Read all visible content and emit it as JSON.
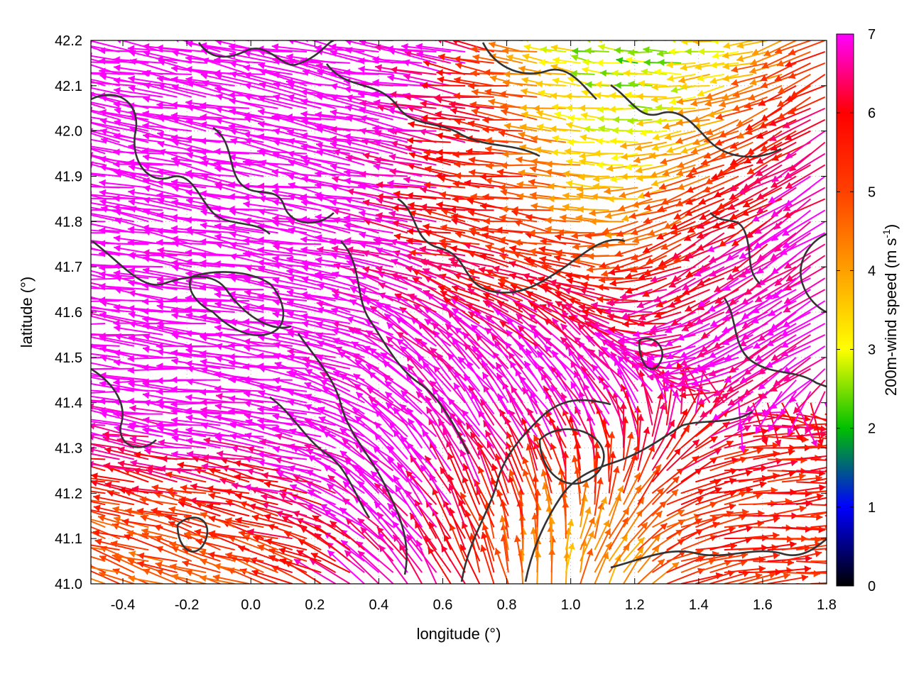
{
  "chart_data": {
    "type": "vector-field",
    "xlabel": "longitude (°)",
    "ylabel": "latitude (°)",
    "xlim": [
      -0.5,
      1.8
    ],
    "ylim": [
      41.0,
      42.2
    ],
    "xticks": [
      "-0.4",
      "-0.2",
      "0.0",
      "0.2",
      "0.4",
      "0.6",
      "0.8",
      "1.0",
      "1.2",
      "1.4",
      "1.6",
      "1.8"
    ],
    "yticks": [
      "41.0",
      "41.1",
      "41.2",
      "41.3",
      "41.4",
      "41.5",
      "41.6",
      "41.7",
      "41.8",
      "41.9",
      "42.0",
      "42.1",
      "42.2"
    ],
    "grid": true,
    "colorbar": {
      "label_main": "200m-wind speed (m s",
      "label_sup": "-1",
      "label_close": ")",
      "range": [
        0,
        7
      ],
      "ticks": [
        "0",
        "1",
        "2",
        "3",
        "4",
        "5",
        "6",
        "7"
      ],
      "colors": [
        "#000000",
        "#0000ff",
        "#00c000",
        "#ffff00",
        "#ffa000",
        "#ff4000",
        "#ff0000",
        "#ff00ff"
      ]
    },
    "wind_regions": [
      {
        "lon": [
          -0.5,
          0.6
        ],
        "lat": [
          41.75,
          42.2
        ],
        "u": -6.8,
        "v": 1.2,
        "speed": 7.5
      },
      {
        "lon": [
          -0.5,
          0.4
        ],
        "lat": [
          41.15,
          41.75
        ],
        "u": -6.5,
        "v": 0.6,
        "speed": 7.4
      },
      {
        "lon": [
          0.4,
          1.25
        ],
        "lat": [
          41.0,
          41.6
        ],
        "u": -3.5,
        "v": 5.5,
        "speed": 7.3
      },
      {
        "lon": [
          1.25,
          1.8
        ],
        "lat": [
          41.5,
          42.0
        ],
        "u": -4.5,
        "v": -3.0,
        "speed": 7.2
      },
      {
        "lon": [
          0.6,
          1.0
        ],
        "lat": [
          41.6,
          42.0
        ],
        "u": -6.0,
        "v": 0.5,
        "speed": 5.5
      },
      {
        "lon": [
          1.0,
          1.5
        ],
        "lat": [
          41.75,
          42.2
        ],
        "u": -2.0,
        "v": 0.5,
        "speed": 2.2
      },
      {
        "lon": [
          1.2,
          1.8
        ],
        "lat": [
          41.0,
          41.3
        ],
        "u": 6.0,
        "v": 0.3,
        "speed": 5.5
      },
      {
        "lon": [
          -0.5,
          0.1
        ],
        "lat": [
          41.0,
          41.2
        ],
        "u": -4.0,
        "v": 1.5,
        "speed": 4.5
      },
      {
        "lon": [
          0.8,
          1.2
        ],
        "lat": [
          41.0,
          41.2
        ],
        "u": 2.0,
        "v": 1.5,
        "speed": 2.5
      }
    ]
  }
}
